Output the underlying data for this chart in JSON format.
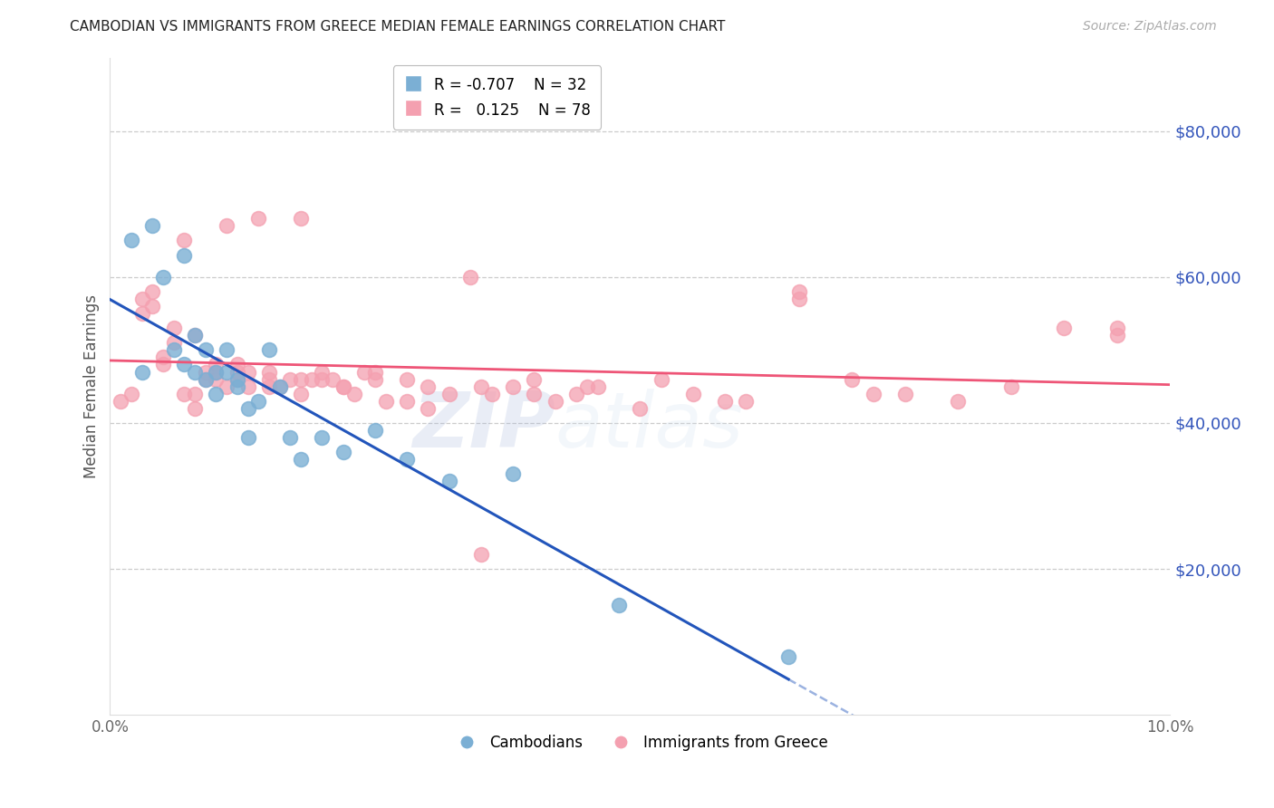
{
  "title": "CAMBODIAN VS IMMIGRANTS FROM GREECE MEDIAN FEMALE EARNINGS CORRELATION CHART",
  "source": "Source: ZipAtlas.com",
  "ylabel": "Median Female Earnings",
  "watermark_zip": "ZIP",
  "watermark_atlas": "atlas",
  "ylim": [
    0,
    90000
  ],
  "xlim": [
    0.0,
    0.1
  ],
  "yticks": [
    20000,
    40000,
    60000,
    80000
  ],
  "ytick_labels": [
    "$20,000",
    "$40,000",
    "$60,000",
    "$80,000"
  ],
  "xticks": [
    0.0,
    0.02,
    0.04,
    0.06,
    0.08,
    0.1
  ],
  "xtick_labels": [
    "0.0%",
    "",
    "",
    "",
    "",
    "10.0%"
  ],
  "legend_r_cambodian": "-0.707",
  "legend_n_cambodian": "32",
  "legend_r_greece": "0.125",
  "legend_n_greece": "78",
  "cambodian_color": "#7bafd4",
  "greece_color": "#f4a0b0",
  "trend_cambodian_color": "#2255bb",
  "trend_greece_color": "#ee5577",
  "title_color": "#222222",
  "source_color": "#aaaaaa",
  "axis_label_color": "#555555",
  "ytick_color": "#3355bb",
  "xtick_color": "#666666",
  "grid_color": "#cccccc",
  "background_color": "#ffffff",
  "cambodians_x": [
    0.002,
    0.003,
    0.004,
    0.005,
    0.006,
    0.007,
    0.007,
    0.008,
    0.008,
    0.009,
    0.009,
    0.01,
    0.01,
    0.011,
    0.011,
    0.012,
    0.012,
    0.013,
    0.013,
    0.014,
    0.015,
    0.016,
    0.017,
    0.018,
    0.02,
    0.022,
    0.025,
    0.028,
    0.032,
    0.038,
    0.048,
    0.064
  ],
  "cambodians_y": [
    65000,
    47000,
    67000,
    60000,
    50000,
    48000,
    63000,
    52000,
    47000,
    50000,
    46000,
    47000,
    44000,
    50000,
    47000,
    46000,
    45000,
    42000,
    38000,
    43000,
    50000,
    45000,
    38000,
    35000,
    38000,
    36000,
    39000,
    35000,
    32000,
    33000,
    15000,
    8000
  ],
  "greece_x": [
    0.001,
    0.002,
    0.003,
    0.003,
    0.004,
    0.004,
    0.005,
    0.005,
    0.006,
    0.006,
    0.007,
    0.007,
    0.008,
    0.008,
    0.008,
    0.009,
    0.009,
    0.01,
    0.01,
    0.011,
    0.011,
    0.012,
    0.012,
    0.013,
    0.013,
    0.014,
    0.015,
    0.015,
    0.016,
    0.017,
    0.018,
    0.018,
    0.019,
    0.02,
    0.021,
    0.022,
    0.023,
    0.024,
    0.025,
    0.026,
    0.028,
    0.03,
    0.032,
    0.034,
    0.036,
    0.038,
    0.04,
    0.042,
    0.044,
    0.046,
    0.05,
    0.055,
    0.06,
    0.065,
    0.07,
    0.075,
    0.08,
    0.085,
    0.09,
    0.095,
    0.02,
    0.025,
    0.03,
    0.035,
    0.04,
    0.045,
    0.052,
    0.058,
    0.065,
    0.072,
    0.01,
    0.012,
    0.015,
    0.018,
    0.022,
    0.028,
    0.035,
    0.095
  ],
  "greece_y": [
    43000,
    44000,
    55000,
    57000,
    56000,
    58000,
    49000,
    48000,
    53000,
    51000,
    44000,
    65000,
    42000,
    44000,
    52000,
    47000,
    46000,
    46000,
    48000,
    45000,
    67000,
    47000,
    48000,
    45000,
    47000,
    68000,
    47000,
    46000,
    45000,
    46000,
    44000,
    68000,
    46000,
    46000,
    46000,
    45000,
    44000,
    47000,
    47000,
    43000,
    43000,
    42000,
    44000,
    60000,
    44000,
    45000,
    46000,
    43000,
    44000,
    45000,
    42000,
    44000,
    43000,
    57000,
    46000,
    44000,
    43000,
    45000,
    53000,
    52000,
    47000,
    46000,
    45000,
    22000,
    44000,
    45000,
    46000,
    43000,
    58000,
    44000,
    47000,
    46000,
    45000,
    46000,
    45000,
    46000,
    45000,
    53000
  ]
}
